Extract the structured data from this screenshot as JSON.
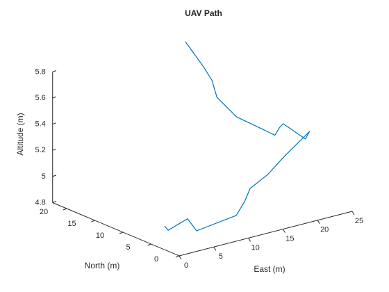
{
  "chart_data": {
    "type": "line3d",
    "title": "UAV Path",
    "x_label": "East (m)",
    "y_label": "North (m)",
    "z_label": "Altitude (m)",
    "series": [
      {
        "name": "UAV Path",
        "color": "#0072bd",
        "x": [
          0.33,
          0.84,
          3.64,
          4.95,
          11.49,
          12.7,
          13.5,
          16.8,
          20.1,
          23.7,
          22.3,
          19.1,
          18.6,
          18.7,
          16.4,
          15.2,
          15.3,
          14.9,
          13.9
        ],
        "y": [
          3,
          3,
          3,
          3,
          4,
          4,
          4,
          5,
          6,
          6,
          5,
          5,
          5,
          6,
          10,
          12,
          13,
          14,
          16
        ],
        "z": [
          4.97,
          4.93,
          4.98,
          4.87,
          4.88,
          4.97,
          5.06,
          5.1,
          5.18,
          5.32,
          5.3,
          5.46,
          5.44,
          5.36,
          5.46,
          5.59,
          5.7,
          5.79,
          5.96
        ]
      }
    ],
    "xlim": [
      0,
      25
    ],
    "ylim": [
      0,
      22.5
    ],
    "zlim": [
      4.8,
      5.8
    ],
    "xticks": [
      0,
      5,
      10,
      15,
      20,
      25
    ],
    "yticks": [
      0,
      5,
      10,
      15,
      20
    ],
    "zticks": [
      4.8,
      5,
      5.2,
      5.4,
      5.6,
      5.8
    ]
  }
}
